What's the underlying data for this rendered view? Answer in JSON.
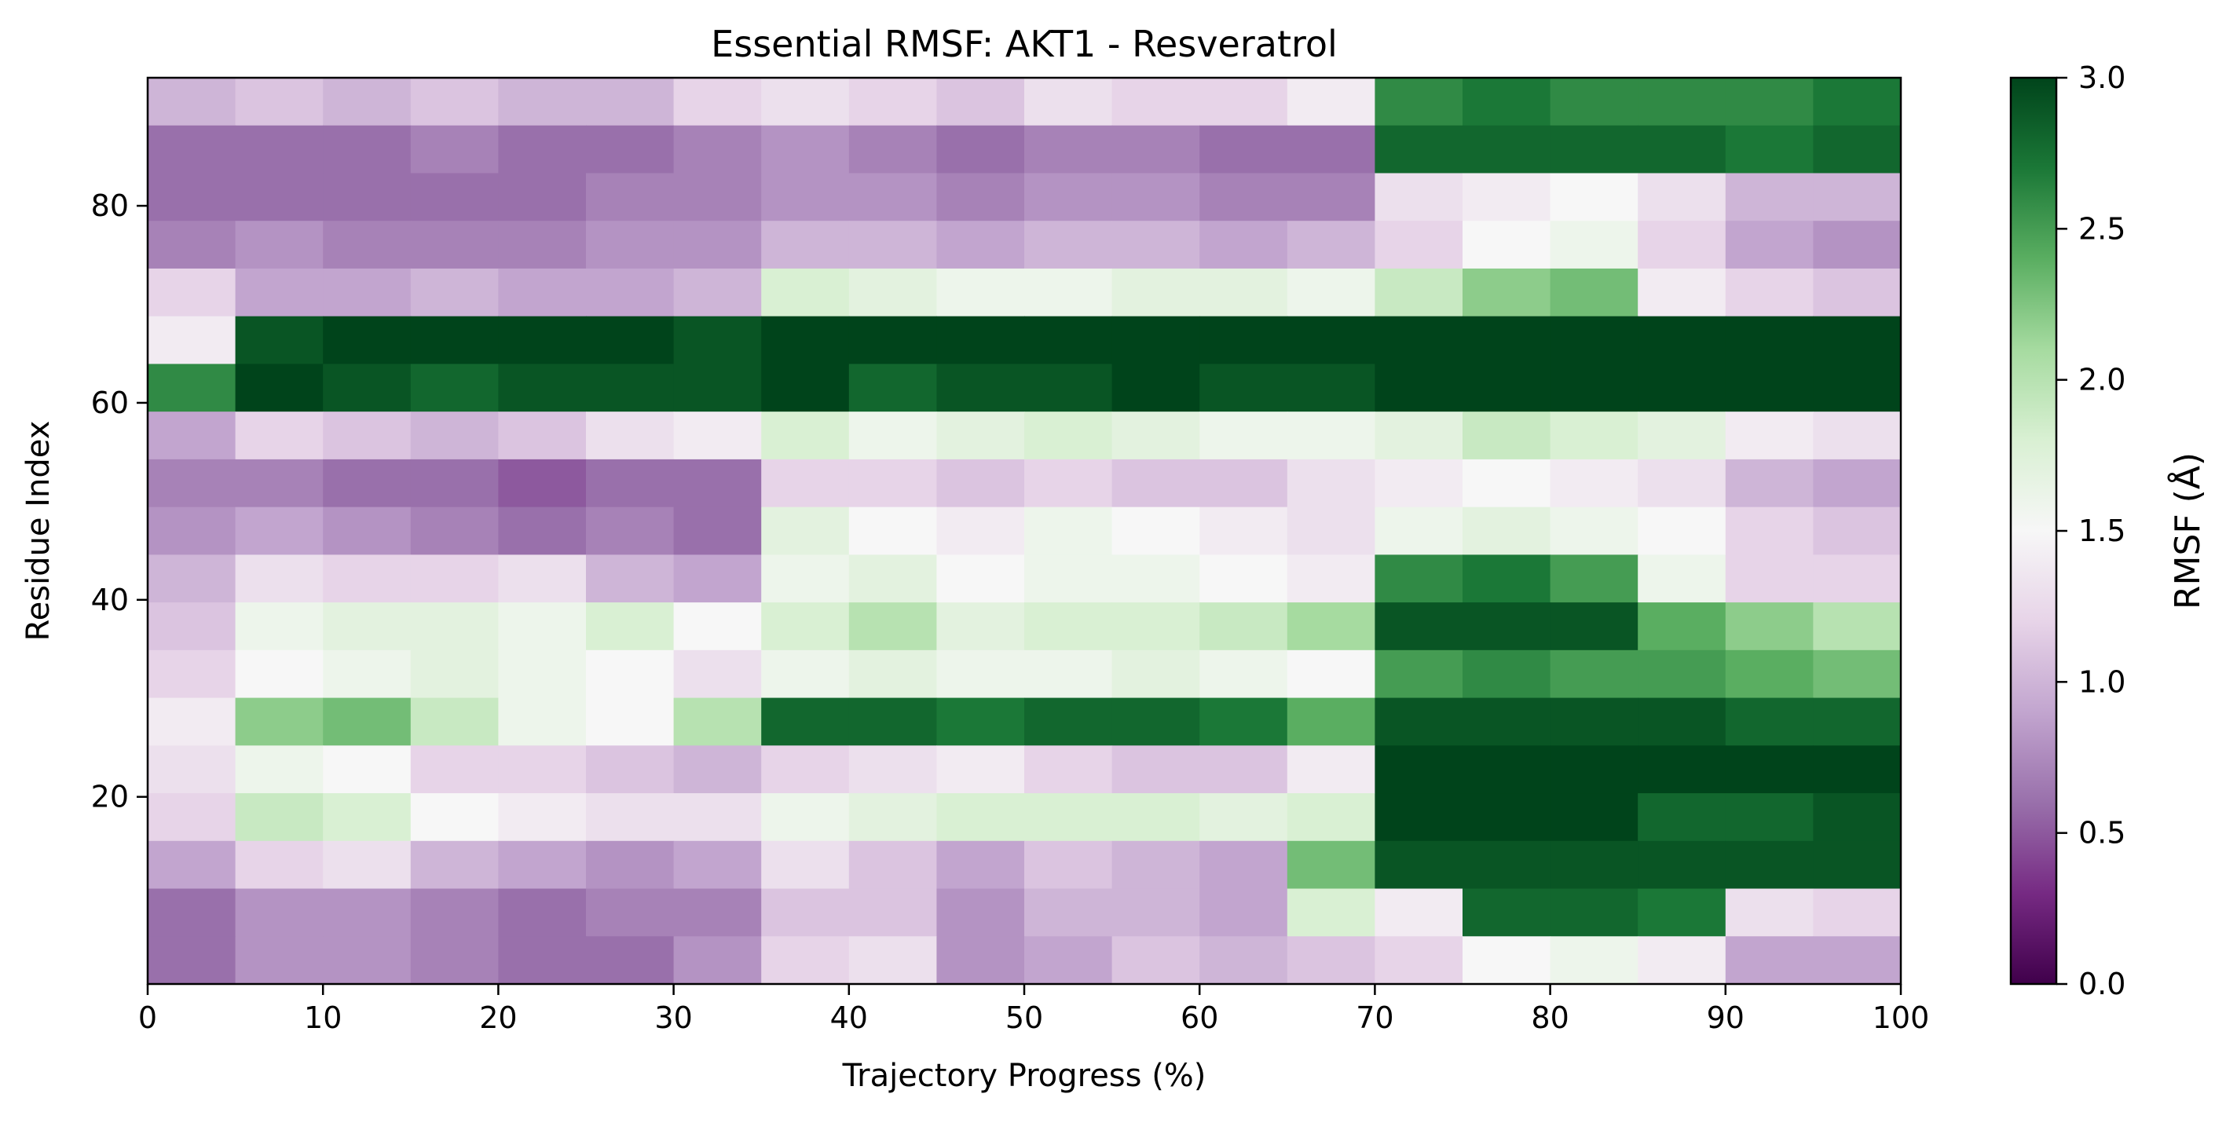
{
  "chart_data": {
    "type": "heatmap",
    "title": "Essential RMSF: AKT1 - Resveratrol",
    "xlabel": "Trajectory Progress (%)",
    "ylabel": "Residue Index",
    "xlim": [
      0,
      100
    ],
    "ylim": [
      1,
      93
    ],
    "xticks": [
      0,
      10,
      20,
      30,
      40,
      50,
      60,
      70,
      80,
      90,
      100
    ],
    "yticks": [
      20,
      40,
      60,
      80
    ],
    "colormap": "PRGn",
    "colormap_stops": [
      "#40004b",
      "#762a83",
      "#9970ab",
      "#c2a5cf",
      "#e7d4e8",
      "#f7f7f7",
      "#d9f0d3",
      "#a6dba0",
      "#5aae61",
      "#1b7837",
      "#00441b"
    ],
    "colorbar": {
      "label": "RMSF (Å)",
      "range": [
        0.0,
        3.0
      ],
      "ticks": [
        "0.0",
        "0.5",
        "1.0",
        "1.5",
        "2.0",
        "2.5",
        "3.0"
      ]
    },
    "x_bin_centers": [
      2.5,
      7.5,
      12.5,
      17.5,
      22.5,
      27.5,
      32.5,
      37.5,
      42.5,
      47.5,
      52.5,
      57.5,
      62.5,
      67.5,
      72.5,
      77.5,
      82.5,
      87.5,
      92.5,
      97.5
    ],
    "y_bin_centers": [
      93,
      88,
      83,
      78,
      73,
      68,
      63,
      58,
      53,
      48,
      43,
      38,
      33,
      28,
      23,
      18,
      13,
      8,
      3
    ],
    "values": [
      [
        1.0,
        1.1,
        1.0,
        1.1,
        1.0,
        1.0,
        1.2,
        1.3,
        1.2,
        1.1,
        1.3,
        1.2,
        1.2,
        1.4,
        2.6,
        2.7,
        2.6,
        2.6,
        2.6,
        2.7
      ],
      [
        0.6,
        0.6,
        0.6,
        0.7,
        0.6,
        0.6,
        0.7,
        0.8,
        0.7,
        0.6,
        0.7,
        0.7,
        0.6,
        0.6,
        2.8,
        2.8,
        2.8,
        2.8,
        2.7,
        2.8
      ],
      [
        0.6,
        0.6,
        0.6,
        0.6,
        0.6,
        0.7,
        0.7,
        0.8,
        0.8,
        0.7,
        0.8,
        0.8,
        0.7,
        0.7,
        1.3,
        1.4,
        1.5,
        1.3,
        1.0,
        1.0
      ],
      [
        0.7,
        0.8,
        0.7,
        0.7,
        0.7,
        0.8,
        0.8,
        1.0,
        1.0,
        0.9,
        1.0,
        1.0,
        0.9,
        1.0,
        1.2,
        1.5,
        1.6,
        1.2,
        0.9,
        0.8
      ],
      [
        1.2,
        0.9,
        0.9,
        1.0,
        0.9,
        0.9,
        1.0,
        1.8,
        1.7,
        1.6,
        1.6,
        1.7,
        1.7,
        1.6,
        1.9,
        2.2,
        2.3,
        1.4,
        1.2,
        1.1
      ],
      [
        1.4,
        2.9,
        3.0,
        3.0,
        3.0,
        3.0,
        2.9,
        3.0,
        3.0,
        3.0,
        3.0,
        3.0,
        3.0,
        3.0,
        3.0,
        3.0,
        3.0,
        3.0,
        3.0,
        3.0
      ],
      [
        2.6,
        3.0,
        2.9,
        2.8,
        2.9,
        2.9,
        2.9,
        3.0,
        2.8,
        2.9,
        2.9,
        3.0,
        2.9,
        2.9,
        3.0,
        3.0,
        3.0,
        3.0,
        3.0,
        3.0
      ],
      [
        0.9,
        1.2,
        1.1,
        1.0,
        1.1,
        1.3,
        1.4,
        1.8,
        1.6,
        1.7,
        1.8,
        1.7,
        1.6,
        1.6,
        1.7,
        1.9,
        1.8,
        1.7,
        1.4,
        1.3
      ],
      [
        0.7,
        0.7,
        0.6,
        0.6,
        0.5,
        0.6,
        0.6,
        1.2,
        1.2,
        1.1,
        1.2,
        1.1,
        1.1,
        1.3,
        1.4,
        1.5,
        1.4,
        1.3,
        1.0,
        0.9
      ],
      [
        0.8,
        0.9,
        0.8,
        0.7,
        0.6,
        0.7,
        0.6,
        1.7,
        1.5,
        1.4,
        1.6,
        1.5,
        1.4,
        1.3,
        1.6,
        1.7,
        1.6,
        1.5,
        1.2,
        1.1
      ],
      [
        1.0,
        1.3,
        1.2,
        1.2,
        1.3,
        1.0,
        0.9,
        1.6,
        1.7,
        1.5,
        1.6,
        1.6,
        1.5,
        1.4,
        2.6,
        2.7,
        2.5,
        1.6,
        1.2,
        1.2
      ],
      [
        1.1,
        1.6,
        1.7,
        1.7,
        1.6,
        1.8,
        1.5,
        1.8,
        2.0,
        1.7,
        1.8,
        1.8,
        1.9,
        2.1,
        2.9,
        2.9,
        2.9,
        2.4,
        2.2,
        2.0
      ],
      [
        1.2,
        1.5,
        1.6,
        1.7,
        1.6,
        1.5,
        1.3,
        1.6,
        1.7,
        1.6,
        1.6,
        1.7,
        1.6,
        1.5,
        2.5,
        2.6,
        2.5,
        2.5,
        2.4,
        2.3
      ],
      [
        1.4,
        2.2,
        2.3,
        1.9,
        1.6,
        1.5,
        2.0,
        2.8,
        2.8,
        2.7,
        2.8,
        2.8,
        2.7,
        2.4,
        2.9,
        2.9,
        2.9,
        2.9,
        2.8,
        2.8
      ],
      [
        1.3,
        1.6,
        1.5,
        1.2,
        1.2,
        1.1,
        1.0,
        1.2,
        1.3,
        1.4,
        1.2,
        1.1,
        1.1,
        1.4,
        3.0,
        3.0,
        3.0,
        3.0,
        3.0,
        3.0
      ],
      [
        1.2,
        1.9,
        1.8,
        1.5,
        1.4,
        1.3,
        1.3,
        1.6,
        1.7,
        1.8,
        1.8,
        1.8,
        1.7,
        1.8,
        3.0,
        3.0,
        3.0,
        2.8,
        2.8,
        2.9
      ],
      [
        0.9,
        1.2,
        1.3,
        1.0,
        0.9,
        0.8,
        0.9,
        1.3,
        1.1,
        0.9,
        1.1,
        1.0,
        0.9,
        2.3,
        2.9,
        2.9,
        2.9,
        2.9,
        2.9,
        2.9
      ],
      [
        0.6,
        0.8,
        0.8,
        0.7,
        0.6,
        0.7,
        0.7,
        1.1,
        1.1,
        0.8,
        1.0,
        1.0,
        0.9,
        1.8,
        1.4,
        2.8,
        2.8,
        2.7,
        1.3,
        1.2
      ],
      [
        0.6,
        0.8,
        0.8,
        0.7,
        0.6,
        0.6,
        0.8,
        1.2,
        1.3,
        0.8,
        0.9,
        1.1,
        1.0,
        1.1,
        1.2,
        1.5,
        1.6,
        1.4,
        0.9,
        0.9
      ]
    ]
  }
}
